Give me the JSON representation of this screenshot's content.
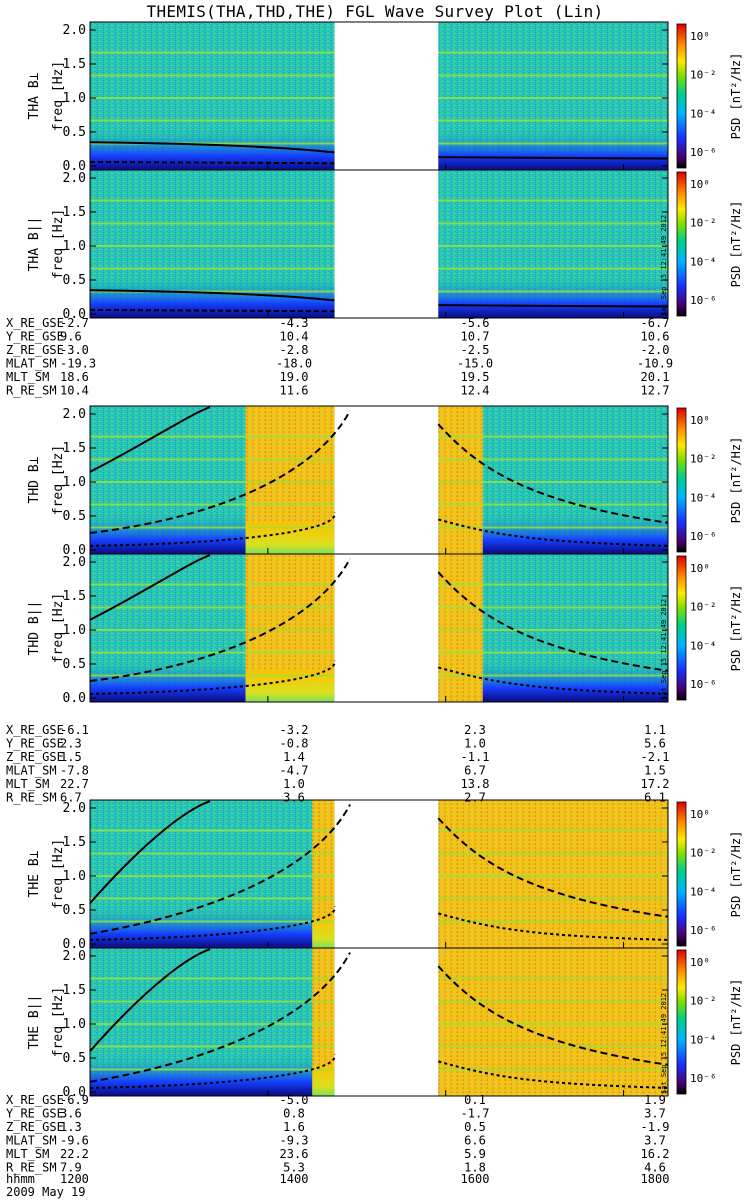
{
  "title": "THEMIS(THA,THD,THE) FGL Wave Survey Plot (Lin)",
  "colorbar": {
    "label": "PSD [nT²/Hz]",
    "ticks": [
      "10⁰",
      "10⁻²",
      "10⁻⁴",
      "10⁻⁶"
    ]
  },
  "colors": {
    "background": "#22c7a8",
    "gap": "#ffffff",
    "line": "#000000"
  },
  "time_axis": {
    "label": "hhmm",
    "ticks": [
      "1200",
      "1400",
      "1600",
      "1800"
    ],
    "date": "2009 May 19"
  },
  "stamp": "Sat Sep 15 12:41:49 2012",
  "chart_data": [
    {
      "type": "heatmap",
      "probe": "THA",
      "panels": [
        {
          "id": "tha-perp",
          "ylabel": "THA B⊥",
          "yunit": "freq [Hz]",
          "ylim": [
            0,
            2
          ],
          "yticks": [
            "0.0",
            "0.5",
            "1.0",
            "1.5",
            "2.0"
          ]
        },
        {
          "id": "tha-par",
          "ylabel": "THA B||",
          "yunit": "freq [Hz]",
          "ylim": [
            0,
            2
          ],
          "yticks": [
            "0.0",
            "0.5",
            "1.0",
            "1.5",
            "2.0"
          ]
        }
      ],
      "data_gap": [
        "1445",
        "1555"
      ],
      "ephemeris": [
        {
          "label": "X_RE_GSE",
          "values": [
            "-2.7",
            "-4.3",
            "-5.6",
            "-6.7"
          ]
        },
        {
          "label": "Y_RE_GSE",
          "values": [
            "9.6",
            "10.4",
            "10.7",
            "10.6"
          ]
        },
        {
          "label": "Z_RE_GSE",
          "values": [
            "-3.0",
            "-2.8",
            "-2.5",
            "-2.0"
          ]
        },
        {
          "label": "MLAT_SM",
          "values": [
            "-19.3",
            "-18.0",
            "-15.0",
            "-10.9"
          ]
        },
        {
          "label": "MLT_SM",
          "values": [
            "18.6",
            "19.0",
            "19.5",
            "20.1"
          ]
        },
        {
          "label": "R_RE_SM",
          "values": [
            "10.4",
            "11.6",
            "12.4",
            "12.7"
          ]
        }
      ]
    },
    {
      "type": "heatmap",
      "probe": "THD",
      "panels": [
        {
          "id": "thd-perp",
          "ylabel": "THD B⊥",
          "yunit": "freq [Hz]",
          "ylim": [
            0,
            2
          ],
          "yticks": [
            "0.0",
            "0.5",
            "1.0",
            "1.5",
            "2.0"
          ]
        },
        {
          "id": "thd-par",
          "ylabel": "THD B||",
          "yunit": "freq [Hz]",
          "ylim": [
            0,
            2
          ],
          "yticks": [
            "0.0",
            "0.5",
            "1.0",
            "1.5",
            "2.0"
          ]
        }
      ],
      "data_gap": [
        "1445",
        "1555"
      ],
      "ephemeris": [
        {
          "label": "X_RE_GSE",
          "values": [
            "-6.1",
            "-3.2",
            "2.3",
            "1.1"
          ]
        },
        {
          "label": "Y_RE_GSE",
          "values": [
            "2.3",
            "-0.8",
            "1.0",
            "5.6"
          ]
        },
        {
          "label": "Z_RE_GSE",
          "values": [
            "1.5",
            "1.4",
            "-1.1",
            "-2.1"
          ]
        },
        {
          "label": "MLAT_SM",
          "values": [
            "-7.8",
            "-4.7",
            "6.7",
            "1.5"
          ]
        },
        {
          "label": "MLT_SM",
          "values": [
            "22.7",
            "1.0",
            "13.8",
            "17.2"
          ]
        },
        {
          "label": "R_RE_SM",
          "values": [
            "6.7",
            "3.6",
            "2.7",
            "6.1"
          ]
        }
      ]
    },
    {
      "type": "heatmap",
      "probe": "THE",
      "panels": [
        {
          "id": "the-perp",
          "ylabel": "THE B⊥",
          "yunit": "freq [Hz]",
          "ylim": [
            0,
            2
          ],
          "yticks": [
            "0.0",
            "0.5",
            "1.0",
            "1.5",
            "2.0"
          ]
        },
        {
          "id": "the-par",
          "ylabel": "THE B||",
          "yunit": "freq [Hz]",
          "ylim": [
            0,
            2
          ],
          "yticks": [
            "0.0",
            "0.5",
            "1.0",
            "1.5",
            "2.0"
          ]
        }
      ],
      "data_gap": [
        "1445",
        "1555"
      ],
      "ephemeris": [
        {
          "label": "X_RE_GSE",
          "values": [
            "-6.9",
            "-5.0",
            "0.1",
            "1.9"
          ]
        },
        {
          "label": "Y_RE_GSE",
          "values": [
            "3.6",
            "0.8",
            "-1.7",
            "3.7"
          ]
        },
        {
          "label": "Z_RE_GSE",
          "values": [
            "1.3",
            "1.6",
            "0.5",
            "-1.9"
          ]
        },
        {
          "label": "MLAT_SM",
          "values": [
            "-9.6",
            "-9.3",
            "6.6",
            "3.7"
          ]
        },
        {
          "label": "MLT_SM",
          "values": [
            "22.2",
            "23.6",
            "5.9",
            "16.2"
          ]
        },
        {
          "label": "R_RE_SM",
          "values": [
            "7.9",
            "5.3",
            "1.8",
            "4.6"
          ]
        }
      ]
    }
  ]
}
